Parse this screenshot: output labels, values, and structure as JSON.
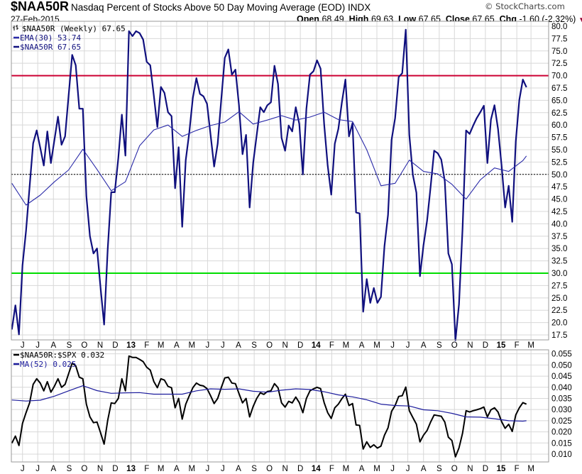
{
  "header": {
    "symbol": "$NAA50R",
    "description": "Nasdaq Percent of Stocks Above 50 Day Moving Average (EOD) INDX",
    "date": "27-Feb-2015",
    "copyright": "© StockCharts.com",
    "ohlc": {
      "open_label": "Open",
      "open": "68.49",
      "high_label": "High",
      "high": "69.63",
      "low_label": "Low",
      "low": "67.65",
      "close_label": "Close",
      "close": "67.65",
      "chg_label": "Chg",
      "chg": "-1.60 (-2.32%)",
      "chg_direction": "down"
    }
  },
  "colors": {
    "price_line": "#10107e",
    "ema_line": "#2a2aa8",
    "upper_threshold": "#cc0033",
    "lower_threshold": "#00dd00",
    "ratio_line": "#000000",
    "ma_line": "#1c1c9c",
    "grid": "#d8d8d8"
  },
  "chart_data": [
    {
      "type": "line",
      "frequency": "Weekly",
      "last_date": "2015-02-27",
      "legend": [
        {
          "label": "$NAA50R (Weekly) 67.65",
          "icon": "ohlc-bar-icon"
        },
        {
          "label": "EMA(30) 53.74",
          "color": "#2a2aa8"
        },
        {
          "label": "$NAA50R 67.65",
          "color": "#10107e"
        }
      ],
      "legend_position": "top-left",
      "ylim": [
        16.5,
        81.0
      ],
      "y_ticks": [
        "17.5",
        "20.0",
        "22.5",
        "25.0",
        "27.5",
        "30.0",
        "32.5",
        "35.0",
        "37.5",
        "40.0",
        "42.5",
        "45.0",
        "47.5",
        "50.0",
        "52.5",
        "55.0",
        "57.5",
        "60.0",
        "62.5",
        "65.0",
        "67.5",
        "70.0",
        "72.5",
        "75.0",
        "77.5",
        "80.0"
      ],
      "reference_lines": [
        {
          "value": 70,
          "style": "solid",
          "color": "#cc0033"
        },
        {
          "value": 50,
          "style": "dotted",
          "color": "#000000"
        },
        {
          "value": 30,
          "style": "solid",
          "color": "#00dd00"
        }
      ],
      "grid": true,
      "series": [
        {
          "name": "$NAA50R",
          "values": [
            18.6,
            23.5,
            17.6,
            31.6,
            38.6,
            47.5,
            56.3,
            58.9,
            55.4,
            51.8,
            58.7,
            52.3,
            57.0,
            61.7,
            56.0,
            57.7,
            66.0,
            74.2,
            72.1,
            63.3,
            63.3,
            45.6,
            37.5,
            34.0,
            35.0,
            27.0,
            19.6,
            34.7,
            46.4,
            46.4,
            53.3,
            62.1,
            53.8,
            79.0,
            78.0,
            79.0,
            78.6,
            77.3,
            72.8,
            72.1,
            66.0,
            59.6,
            67.7,
            66.5,
            62.6,
            61.8,
            47.2,
            55.5,
            39.4,
            52.9,
            58.5,
            65.5,
            69.5,
            66.3,
            65.8,
            64.3,
            58.0,
            51.6,
            56.2,
            65.1,
            73.6,
            75.3,
            70.2,
            71.2,
            64.0,
            54.1,
            58.0,
            43.3,
            52.3,
            58.0,
            63.6,
            62.6,
            64.0,
            64.6,
            72.0,
            68.3,
            57.4,
            54.8,
            59.9,
            58.7,
            63.6,
            60.2,
            50.0,
            63.3,
            70.2,
            70.9,
            73.1,
            71.4,
            60.2,
            51.8,
            45.9,
            56.2,
            59.2,
            64.6,
            69.2,
            57.7,
            60.4,
            42.3,
            42.1,
            22.2,
            28.8,
            24.0,
            27.0,
            24.0,
            25.2,
            35.5,
            41.8,
            57.0,
            61.4,
            69.7,
            70.5,
            79.3,
            58.0,
            49.9,
            46.3,
            29.4,
            35.7,
            40.6,
            47.5,
            54.8,
            54.3,
            53.0,
            48.6,
            34.0,
            31.8,
            16.4,
            23.7,
            39.0,
            58.9,
            58.2,
            59.9,
            61.4,
            62.6,
            63.9,
            52.3,
            61.1,
            64.0,
            59.2,
            51.8,
            43.3,
            47.7,
            40.4,
            56.7,
            65.1,
            69.2,
            67.65
          ]
        },
        {
          "name": "EMA(30)",
          "points": [
            [
              "2012-05-18",
              48.2
            ],
            [
              "2012-06-15",
              43.8
            ],
            [
              "2012-07-13",
              45.8
            ],
            [
              "2012-08-10",
              48.5
            ],
            [
              "2012-09-07",
              50.9
            ],
            [
              "2012-10-05",
              55.1
            ],
            [
              "2012-11-02",
              51.0
            ],
            [
              "2012-11-30",
              46.7
            ],
            [
              "2012-12-28",
              48.5
            ],
            [
              "2013-01-25",
              55.8
            ],
            [
              "2013-02-22",
              59.0
            ],
            [
              "2013-03-22",
              60.0
            ],
            [
              "2013-04-19",
              57.7
            ],
            [
              "2013-05-17",
              58.9
            ],
            [
              "2013-06-14",
              59.9
            ],
            [
              "2013-07-12",
              60.6
            ],
            [
              "2013-08-09",
              62.7
            ],
            [
              "2013-09-06",
              60.2
            ],
            [
              "2013-10-04",
              61.0
            ],
            [
              "2013-11-01",
              61.9
            ],
            [
              "2013-11-29",
              61.0
            ],
            [
              "2013-12-27",
              61.6
            ],
            [
              "2014-01-24",
              62.6
            ],
            [
              "2014-02-21",
              61.1
            ],
            [
              "2014-03-21",
              60.7
            ],
            [
              "2014-04-18",
              55.0
            ],
            [
              "2014-05-16",
              47.7
            ],
            [
              "2014-06-13",
              48.2
            ],
            [
              "2014-07-11",
              52.9
            ],
            [
              "2014-08-08",
              50.6
            ],
            [
              "2014-09-05",
              50.1
            ],
            [
              "2014-10-03",
              48.0
            ],
            [
              "2014-10-31",
              45.0
            ],
            [
              "2014-11-28",
              48.9
            ],
            [
              "2014-12-26",
              51.3
            ],
            [
              "2015-01-23",
              50.6
            ],
            [
              "2015-02-20",
              52.8
            ],
            [
              "2015-02-27",
              53.74
            ]
          ]
        }
      ]
    },
    {
      "type": "line",
      "frequency": "Weekly",
      "last_date": "2015-02-27",
      "legend": [
        {
          "label": "$NAA50R:$SPX 0.032",
          "color": "#000000"
        },
        {
          "label": "MA(52) 0.025",
          "color": "#1c1c9c"
        }
      ],
      "legend_position": "top-left",
      "ylim": [
        0.0065,
        0.0568
      ],
      "y_ticks": [
        "0.010",
        "0.015",
        "0.020",
        "0.025",
        "0.030",
        "0.035",
        "0.040",
        "0.045",
        "0.050",
        "0.055"
      ],
      "grid": true,
      "series": [
        {
          "name": "$NAA50R:$SPX",
          "values": [
            0.0149,
            0.0181,
            0.0139,
            0.0238,
            0.0286,
            0.033,
            0.0413,
            0.0438,
            0.0419,
            0.0384,
            0.0425,
            0.0378,
            0.0405,
            0.0438,
            0.04,
            0.0413,
            0.0461,
            0.0508,
            0.0496,
            0.0445,
            0.0438,
            0.0324,
            0.0267,
            0.0241,
            0.0244,
            0.0196,
            0.0145,
            0.0251,
            0.033,
            0.0327,
            0.035,
            0.0438,
            0.0384,
            0.054,
            0.0534,
            0.0534,
            0.0525,
            0.0515,
            0.049,
            0.0477,
            0.0426,
            0.0398,
            0.0438,
            0.0432,
            0.0404,
            0.0398,
            0.0308,
            0.035,
            0.0257,
            0.0324,
            0.0362,
            0.0398,
            0.0419,
            0.0409,
            0.0406,
            0.0394,
            0.0362,
            0.0327,
            0.035,
            0.0398,
            0.0442,
            0.0445,
            0.0419,
            0.0416,
            0.0372,
            0.033,
            0.035,
            0.0267,
            0.0314,
            0.035,
            0.0375,
            0.0368,
            0.0381,
            0.0384,
            0.0416,
            0.0398,
            0.033,
            0.0311,
            0.0337,
            0.033,
            0.0356,
            0.0331,
            0.0286,
            0.035,
            0.0384,
            0.0393,
            0.04,
            0.0394,
            0.0331,
            0.0286,
            0.026,
            0.0308,
            0.0324,
            0.0349,
            0.0369,
            0.0318,
            0.0327,
            0.0231,
            0.0229,
            0.0123,
            0.0155,
            0.013,
            0.0142,
            0.0127,
            0.0136,
            0.0185,
            0.0218,
            0.0292,
            0.0318,
            0.0359,
            0.0362,
            0.0401,
            0.0295,
            0.0264,
            0.0234,
            0.0155,
            0.0185,
            0.0206,
            0.0244,
            0.0276,
            0.0273,
            0.027,
            0.0244,
            0.0176,
            0.0161,
            0.0088,
            0.0128,
            0.0194,
            0.0295,
            0.0289,
            0.0295,
            0.0299,
            0.0304,
            0.0311,
            0.0267,
            0.0299,
            0.0308,
            0.0289,
            0.0246,
            0.0216,
            0.0234,
            0.0202,
            0.0276,
            0.0308,
            0.0331,
            0.0324
          ]
        },
        {
          "name": "MA(52)",
          "points": [
            [
              "2012-05-18",
              0.0343
            ],
            [
              "2012-06-15",
              0.0338
            ],
            [
              "2012-07-13",
              0.0342
            ],
            [
              "2012-08-10",
              0.036
            ],
            [
              "2012-09-07",
              0.0384
            ],
            [
              "2012-10-05",
              0.0407
            ],
            [
              "2012-11-02",
              0.0385
            ],
            [
              "2012-11-30",
              0.0373
            ],
            [
              "2012-12-28",
              0.0375
            ],
            [
              "2013-01-25",
              0.0376
            ],
            [
              "2013-02-22",
              0.0369
            ],
            [
              "2013-03-22",
              0.0369
            ],
            [
              "2013-04-19",
              0.0369
            ],
            [
              "2013-05-17",
              0.0384
            ],
            [
              "2013-06-14",
              0.0393
            ],
            [
              "2013-07-12",
              0.0391
            ],
            [
              "2013-08-09",
              0.0393
            ],
            [
              "2013-09-06",
              0.0382
            ],
            [
              "2013-10-04",
              0.0378
            ],
            [
              "2013-11-01",
              0.0387
            ],
            [
              "2013-11-29",
              0.0393
            ],
            [
              "2013-12-27",
              0.039
            ],
            [
              "2014-01-24",
              0.038
            ],
            [
              "2014-02-21",
              0.0366
            ],
            [
              "2014-03-21",
              0.0357
            ],
            [
              "2014-04-18",
              0.0344
            ],
            [
              "2014-05-16",
              0.0324
            ],
            [
              "2014-06-13",
              0.0318
            ],
            [
              "2014-07-11",
              0.0316
            ],
            [
              "2014-08-08",
              0.0299
            ],
            [
              "2014-09-05",
              0.0295
            ],
            [
              "2014-10-03",
              0.0283
            ],
            [
              "2014-10-31",
              0.0267
            ],
            [
              "2014-11-28",
              0.0266
            ],
            [
              "2014-12-26",
              0.0259
            ],
            [
              "2015-01-23",
              0.025
            ],
            [
              "2015-02-20",
              0.0248
            ],
            [
              "2015-02-27",
              0.025
            ]
          ]
        }
      ]
    }
  ],
  "x_axis": {
    "months": [
      {
        "date": "2012-06-01",
        "label": "J"
      },
      {
        "date": "2012-07-01",
        "label": "J"
      },
      {
        "date": "2012-08-01",
        "label": "A"
      },
      {
        "date": "2012-09-01",
        "label": "S"
      },
      {
        "date": "2012-10-01",
        "label": "O"
      },
      {
        "date": "2012-11-01",
        "label": "N"
      },
      {
        "date": "2012-12-01",
        "label": "D"
      },
      {
        "date": "2013-01-01",
        "label": "13",
        "bold": true
      },
      {
        "date": "2013-02-01",
        "label": "F"
      },
      {
        "date": "2013-03-01",
        "label": "M"
      },
      {
        "date": "2013-04-01",
        "label": "A"
      },
      {
        "date": "2013-05-01",
        "label": "M"
      },
      {
        "date": "2013-06-01",
        "label": "J"
      },
      {
        "date": "2013-07-01",
        "label": "J"
      },
      {
        "date": "2013-08-01",
        "label": "A"
      },
      {
        "date": "2013-09-01",
        "label": "S"
      },
      {
        "date": "2013-10-01",
        "label": "O"
      },
      {
        "date": "2013-11-01",
        "label": "N"
      },
      {
        "date": "2013-12-01",
        "label": "D"
      },
      {
        "date": "2014-01-01",
        "label": "14",
        "bold": true
      },
      {
        "date": "2014-02-01",
        "label": "F"
      },
      {
        "date": "2014-03-01",
        "label": "M"
      },
      {
        "date": "2014-04-01",
        "label": "A"
      },
      {
        "date": "2014-05-01",
        "label": "M"
      },
      {
        "date": "2014-06-01",
        "label": "J"
      },
      {
        "date": "2014-07-01",
        "label": "J"
      },
      {
        "date": "2014-08-01",
        "label": "A"
      },
      {
        "date": "2014-09-01",
        "label": "S"
      },
      {
        "date": "2014-10-01",
        "label": "O"
      },
      {
        "date": "2014-11-01",
        "label": "N"
      },
      {
        "date": "2014-12-01",
        "label": "D"
      },
      {
        "date": "2015-01-01",
        "label": "15",
        "bold": true
      },
      {
        "date": "2015-02-01",
        "label": "F"
      },
      {
        "date": "2015-03-01",
        "label": "M"
      }
    ]
  }
}
